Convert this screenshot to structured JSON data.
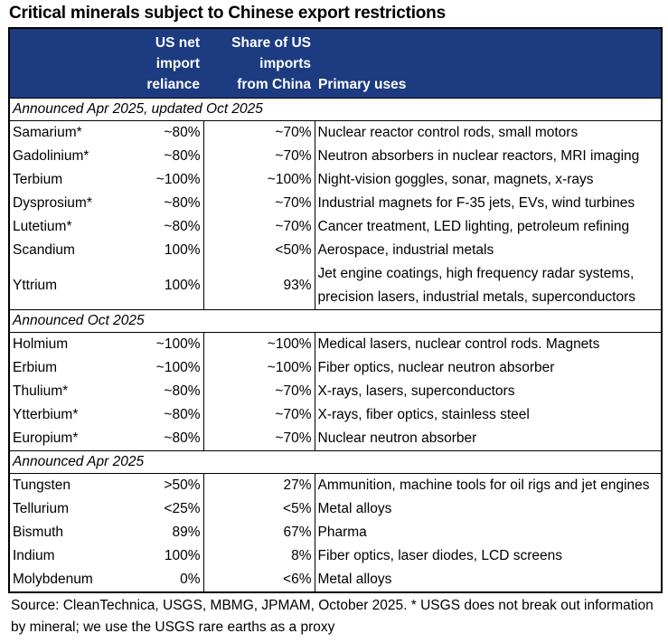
{
  "title": "Critical minerals subject to Chinese export restrictions",
  "table": {
    "header": [
      [
        "US net",
        "import",
        "reliance"
      ],
      [
        "Share of US",
        "imports",
        "from China"
      ],
      [
        "Primary uses"
      ]
    ],
    "sections": [
      {
        "label": "Announced Apr 2025, updated Oct 2025",
        "rows": [
          [
            "Samarium*",
            "~80%",
            "~70%",
            "Nuclear reactor control rods, small motors"
          ],
          [
            "Gadolinium*",
            "~80%",
            "~70%",
            "Neutron absorbers in nuclear reactors, MRI imaging"
          ],
          [
            "Terbium",
            "~100%",
            "~100%",
            "Night-vision goggles, sonar, magnets, x-rays"
          ],
          [
            "Dysprosium*",
            "~80%",
            "~70%",
            "Industrial magnets for F-35 jets, EVs, wind turbines"
          ],
          [
            "Lutetium*",
            "~80%",
            "~70%",
            "Cancer treatment, LED lighting, petroleum refining"
          ],
          [
            "Scandium",
            "100%",
            "<50%",
            "Aerospace, industrial metals"
          ],
          [
            "Yttrium",
            "100%",
            "93%",
            "Jet engine coatings, high frequency radar systems, precision lasers, industrial metals, superconductors"
          ]
        ]
      },
      {
        "label": "Announced Oct 2025",
        "rows": [
          [
            "Holmium",
            "~100%",
            "~100%",
            "Medical lasers, nuclear control rods. Magnets"
          ],
          [
            "Erbium",
            "~100%",
            "~100%",
            "Fiber optics, nuclear neutron absorber"
          ],
          [
            "Thulium*",
            "~80%",
            "~70%",
            "X-rays, lasers, superconductors"
          ],
          [
            "Ytterbium*",
            "~80%",
            "~70%",
            "X-rays, fiber optics, stainless steel"
          ],
          [
            "Europium*",
            "~80%",
            "~70%",
            "Nuclear neutron absorber"
          ]
        ]
      },
      {
        "label": "Announced Apr 2025",
        "rows": [
          [
            "Tungsten",
            ">50%",
            "27%",
            "Ammunition, machine tools for oil rigs and jet engines"
          ],
          [
            "Tellurium",
            "<25%",
            "<5%",
            "Metal alloys"
          ],
          [
            "Bismuth",
            "89%",
            "67%",
            "Pharma"
          ],
          [
            "Indium",
            "100%",
            "8%",
            "Fiber optics, laser diodes, LCD screens"
          ],
          [
            "Molybdenum",
            "0%",
            "<6%",
            "Metal alloys"
          ]
        ]
      }
    ]
  },
  "footer": "Source: CleanTechnica, USGS, MBMG, JPMAM, October 2025. * USGS does not break out information by mineral; we use the USGS rare earths as a proxy"
}
